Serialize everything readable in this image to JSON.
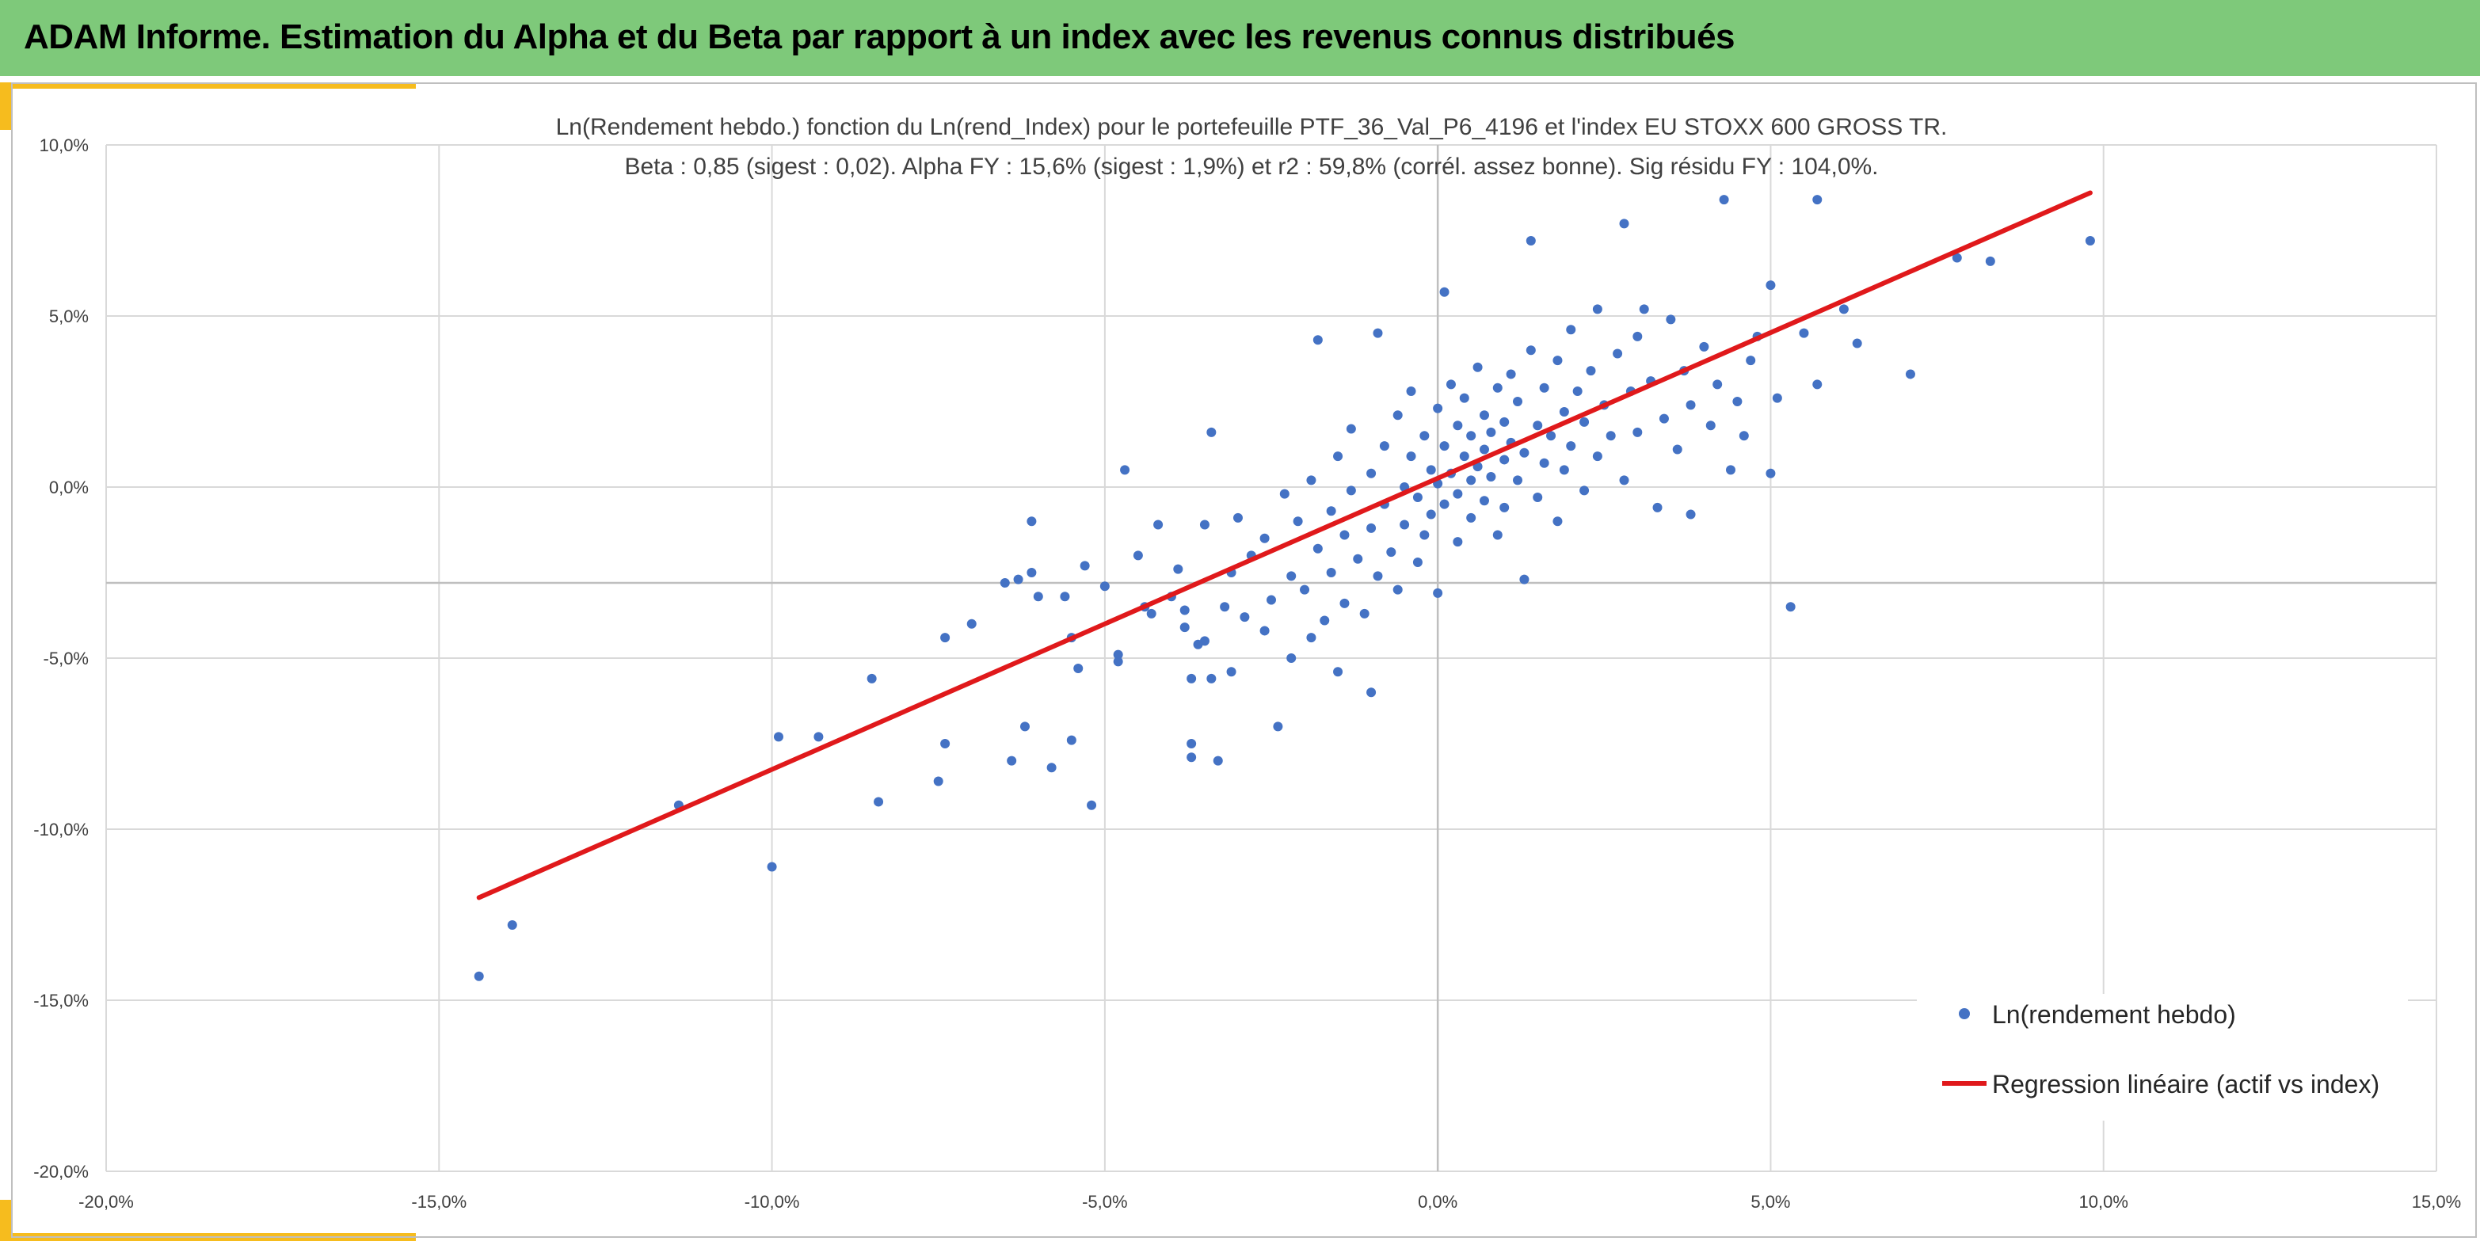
{
  "header": {
    "title": "ADAM Informe. Estimation du Alpha et du Beta par rapport à un index avec les revenus connus distribués"
  },
  "colors": {
    "header_bg": "#7ec97a",
    "accent": "#f6bc1e",
    "points": "#4472c4",
    "regression": "#e0191b",
    "grid": "#d9d9d9",
    "axis": "#bfbfbf"
  },
  "chart_data": {
    "type": "scatter",
    "title": "Ln(Rendement hebdo.) fonction du Ln(rend_Index) pour le portefeuille PTF_36_Val_P6_4196 et l'index EU STOXX 600 GROSS TR.",
    "subtitle": "Beta : 0,85 (sigest : 0,02). Alpha FY : 15,6% (sigest : 1,9%) et r2 : 59,8% (corrél. assez bonne). Sig résidu FY : 104,0%.",
    "xlabel": "",
    "ylabel": "",
    "xlim": [
      -20,
      15
    ],
    "ylim": [
      -20,
      10
    ],
    "x_ticks": [
      -20,
      -15,
      -10,
      -5,
      0,
      5,
      10,
      15
    ],
    "y_ticks": [
      -20,
      -15,
      -10,
      -5,
      0,
      5,
      10
    ],
    "x_tick_labels": [
      "-20,0%",
      "-15,0%",
      "-10,0%",
      "-5,0%",
      "0,0%",
      "5,0%",
      "10,0%",
      "15,0%"
    ],
    "y_tick_labels": [
      "-20,0%",
      "-15,0%",
      "-10,0%",
      "-5,0%",
      "0,0%",
      "5,0%",
      "10,0%"
    ],
    "horizontal_axis_crossing_y": -2.8,
    "grid": true,
    "legend_position": "bottom-right",
    "beta": 0.85,
    "series": [
      {
        "name": "Ln(rendement hebdo)",
        "kind": "scatter",
        "color": "#4472c4",
        "note_point_count_shown": "dense cluster around origin",
        "points": [
          [
            -14.4,
            -14.3
          ],
          [
            -13.9,
            -12.8
          ],
          [
            -11.4,
            -9.3
          ],
          [
            -10.0,
            -11.1
          ],
          [
            -9.9,
            -7.3
          ],
          [
            -9.3,
            -7.3
          ],
          [
            -8.5,
            -5.6
          ],
          [
            -8.4,
            -9.2
          ],
          [
            -7.5,
            -8.6
          ],
          [
            -7.4,
            -7.5
          ],
          [
            -7.4,
            -4.4
          ],
          [
            -7.0,
            -4.0
          ],
          [
            -6.5,
            -2.8
          ],
          [
            -6.3,
            -2.7
          ],
          [
            -6.2,
            -7.0
          ],
          [
            -6.4,
            -8.0
          ],
          [
            -6.1,
            -1.0
          ],
          [
            -6.1,
            -2.5
          ],
          [
            -6.0,
            -3.2
          ],
          [
            -5.8,
            -8.2
          ],
          [
            -5.6,
            -3.2
          ],
          [
            -5.5,
            -4.4
          ],
          [
            -5.5,
            -7.4
          ],
          [
            -5.4,
            -5.3
          ],
          [
            -5.3,
            -2.3
          ],
          [
            -5.2,
            -9.3
          ],
          [
            -5.0,
            -2.9
          ],
          [
            -4.8,
            -4.9
          ],
          [
            -4.8,
            -5.1
          ],
          [
            -4.7,
            0.5
          ],
          [
            -4.5,
            -2.0
          ],
          [
            -4.4,
            -3.5
          ],
          [
            -4.3,
            -3.7
          ],
          [
            -4.2,
            -1.1
          ],
          [
            -4.0,
            -3.2
          ],
          [
            -3.9,
            -2.4
          ],
          [
            -3.8,
            -3.6
          ],
          [
            -3.8,
            -4.1
          ],
          [
            -3.7,
            -7.5
          ],
          [
            -3.7,
            -7.9
          ],
          [
            -3.7,
            -5.6
          ],
          [
            -3.6,
            -4.6
          ],
          [
            -3.5,
            -1.1
          ],
          [
            -3.5,
            -4.5
          ],
          [
            -3.4,
            1.6
          ],
          [
            -3.4,
            -5.6
          ],
          [
            -3.3,
            -8.0
          ],
          [
            -3.2,
            -3.5
          ],
          [
            -3.1,
            -2.5
          ],
          [
            -3.1,
            -5.4
          ],
          [
            -3.0,
            -0.9
          ],
          [
            -2.9,
            -3.8
          ],
          [
            -2.8,
            -2.0
          ],
          [
            -2.6,
            -1.5
          ],
          [
            -2.6,
            -4.2
          ],
          [
            -2.5,
            -3.3
          ],
          [
            -2.4,
            -7.0
          ],
          [
            -2.3,
            -0.2
          ],
          [
            -2.2,
            -2.6
          ],
          [
            -2.2,
            -5.0
          ],
          [
            -2.1,
            -1.0
          ],
          [
            -2.0,
            -3.0
          ],
          [
            -1.9,
            0.2
          ],
          [
            -1.9,
            -4.4
          ],
          [
            -1.8,
            -1.8
          ],
          [
            -1.8,
            4.3
          ],
          [
            -1.7,
            -3.9
          ],
          [
            -1.6,
            -0.7
          ],
          [
            -1.6,
            -2.5
          ],
          [
            -1.5,
            0.9
          ],
          [
            -1.5,
            -5.4
          ],
          [
            -1.4,
            -1.4
          ],
          [
            -1.4,
            -3.4
          ],
          [
            -1.3,
            1.7
          ],
          [
            -1.3,
            -0.1
          ],
          [
            -1.2,
            -2.1
          ],
          [
            -1.1,
            -3.7
          ],
          [
            -1.0,
            0.4
          ],
          [
            -1.0,
            -1.2
          ],
          [
            -1.0,
            -6.0
          ],
          [
            -0.9,
            4.5
          ],
          [
            -0.9,
            -2.6
          ],
          [
            -0.8,
            1.2
          ],
          [
            -0.8,
            -0.5
          ],
          [
            -0.7,
            -1.9
          ],
          [
            -0.6,
            2.1
          ],
          [
            -0.6,
            -3.0
          ],
          [
            -0.5,
            0.0
          ],
          [
            -0.5,
            -1.1
          ],
          [
            -0.4,
            2.8
          ],
          [
            -0.4,
            0.9
          ],
          [
            -0.3,
            -0.3
          ],
          [
            -0.3,
            -2.2
          ],
          [
            -0.2,
            1.5
          ],
          [
            -0.2,
            -1.4
          ],
          [
            -0.1,
            0.5
          ],
          [
            -0.1,
            -0.8
          ],
          [
            0.0,
            2.3
          ],
          [
            0.0,
            0.1
          ],
          [
            0.0,
            -3.1
          ],
          [
            0.1,
            5.7
          ],
          [
            0.1,
            1.2
          ],
          [
            0.1,
            -0.5
          ],
          [
            0.2,
            3.0
          ],
          [
            0.2,
            0.4
          ],
          [
            0.3,
            1.8
          ],
          [
            0.3,
            -0.2
          ],
          [
            0.3,
            -1.6
          ],
          [
            0.4,
            0.9
          ],
          [
            0.4,
            2.6
          ],
          [
            0.5,
            0.2
          ],
          [
            0.5,
            1.5
          ],
          [
            0.5,
            -0.9
          ],
          [
            0.6,
            3.5
          ],
          [
            0.6,
            0.6
          ],
          [
            0.7,
            1.1
          ],
          [
            0.7,
            -0.4
          ],
          [
            0.7,
            2.1
          ],
          [
            0.8,
            0.3
          ],
          [
            0.8,
            1.6
          ],
          [
            0.9,
            -1.4
          ],
          [
            0.9,
            2.9
          ],
          [
            1.0,
            0.8
          ],
          [
            1.0,
            1.9
          ],
          [
            1.0,
            -0.6
          ],
          [
            1.1,
            3.3
          ],
          [
            1.1,
            1.3
          ],
          [
            1.2,
            0.2
          ],
          [
            1.2,
            2.5
          ],
          [
            1.3,
            -2.7
          ],
          [
            1.3,
            1.0
          ],
          [
            1.4,
            7.2
          ],
          [
            1.4,
            4.0
          ],
          [
            1.5,
            1.8
          ],
          [
            1.5,
            -0.3
          ],
          [
            1.6,
            2.9
          ],
          [
            1.6,
            0.7
          ],
          [
            1.7,
            1.5
          ],
          [
            1.8,
            3.7
          ],
          [
            1.8,
            -1.0
          ],
          [
            1.9,
            2.2
          ],
          [
            1.9,
            0.5
          ],
          [
            2.0,
            4.6
          ],
          [
            2.0,
            1.2
          ],
          [
            2.1,
            2.8
          ],
          [
            2.2,
            -0.1
          ],
          [
            2.2,
            1.9
          ],
          [
            2.3,
            3.4
          ],
          [
            2.4,
            5.2
          ],
          [
            2.4,
            0.9
          ],
          [
            2.5,
            2.4
          ],
          [
            2.6,
            1.5
          ],
          [
            2.7,
            3.9
          ],
          [
            2.8,
            7.7
          ],
          [
            2.8,
            0.2
          ],
          [
            2.9,
            2.8
          ],
          [
            3.0,
            4.4
          ],
          [
            3.0,
            1.6
          ],
          [
            3.1,
            5.2
          ],
          [
            3.2,
            3.1
          ],
          [
            3.3,
            -0.6
          ],
          [
            3.4,
            2.0
          ],
          [
            3.5,
            4.9
          ],
          [
            3.6,
            1.1
          ],
          [
            3.7,
            3.4
          ],
          [
            3.8,
            -0.8
          ],
          [
            3.8,
            2.4
          ],
          [
            4.0,
            4.1
          ],
          [
            4.1,
            1.8
          ],
          [
            4.2,
            3.0
          ],
          [
            4.3,
            8.4
          ],
          [
            4.4,
            0.5
          ],
          [
            4.5,
            2.5
          ],
          [
            4.6,
            1.5
          ],
          [
            4.7,
            3.7
          ],
          [
            4.8,
            4.4
          ],
          [
            5.0,
            0.4
          ],
          [
            5.0,
            5.9
          ],
          [
            5.1,
            2.6
          ],
          [
            5.3,
            -3.5
          ],
          [
            5.5,
            4.5
          ],
          [
            5.7,
            3.0
          ],
          [
            5.7,
            8.4
          ],
          [
            6.1,
            5.2
          ],
          [
            6.3,
            4.2
          ],
          [
            7.1,
            3.3
          ],
          [
            7.8,
            6.7
          ],
          [
            8.3,
            6.6
          ],
          [
            9.8,
            7.2
          ]
        ]
      },
      {
        "name": "Regression linéaire (actif vs index)",
        "kind": "line",
        "color": "#e0191b",
        "x": [
          -14.4,
          9.8
        ],
        "y": [
          -12.0,
          8.6
        ]
      }
    ]
  }
}
